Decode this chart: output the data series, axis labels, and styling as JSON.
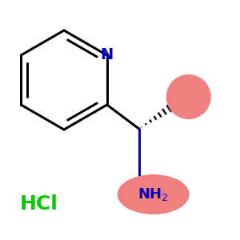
{
  "background_color": "#ffffff",
  "ring_color": "#000000",
  "N_color": "#0000cc",
  "NH2_color": "#0000cc",
  "HCl_color": "#00cc00",
  "blob_color": "#f08080",
  "line_width": 2.2,
  "figsize": [
    3.0,
    3.0
  ],
  "dpi": 100
}
